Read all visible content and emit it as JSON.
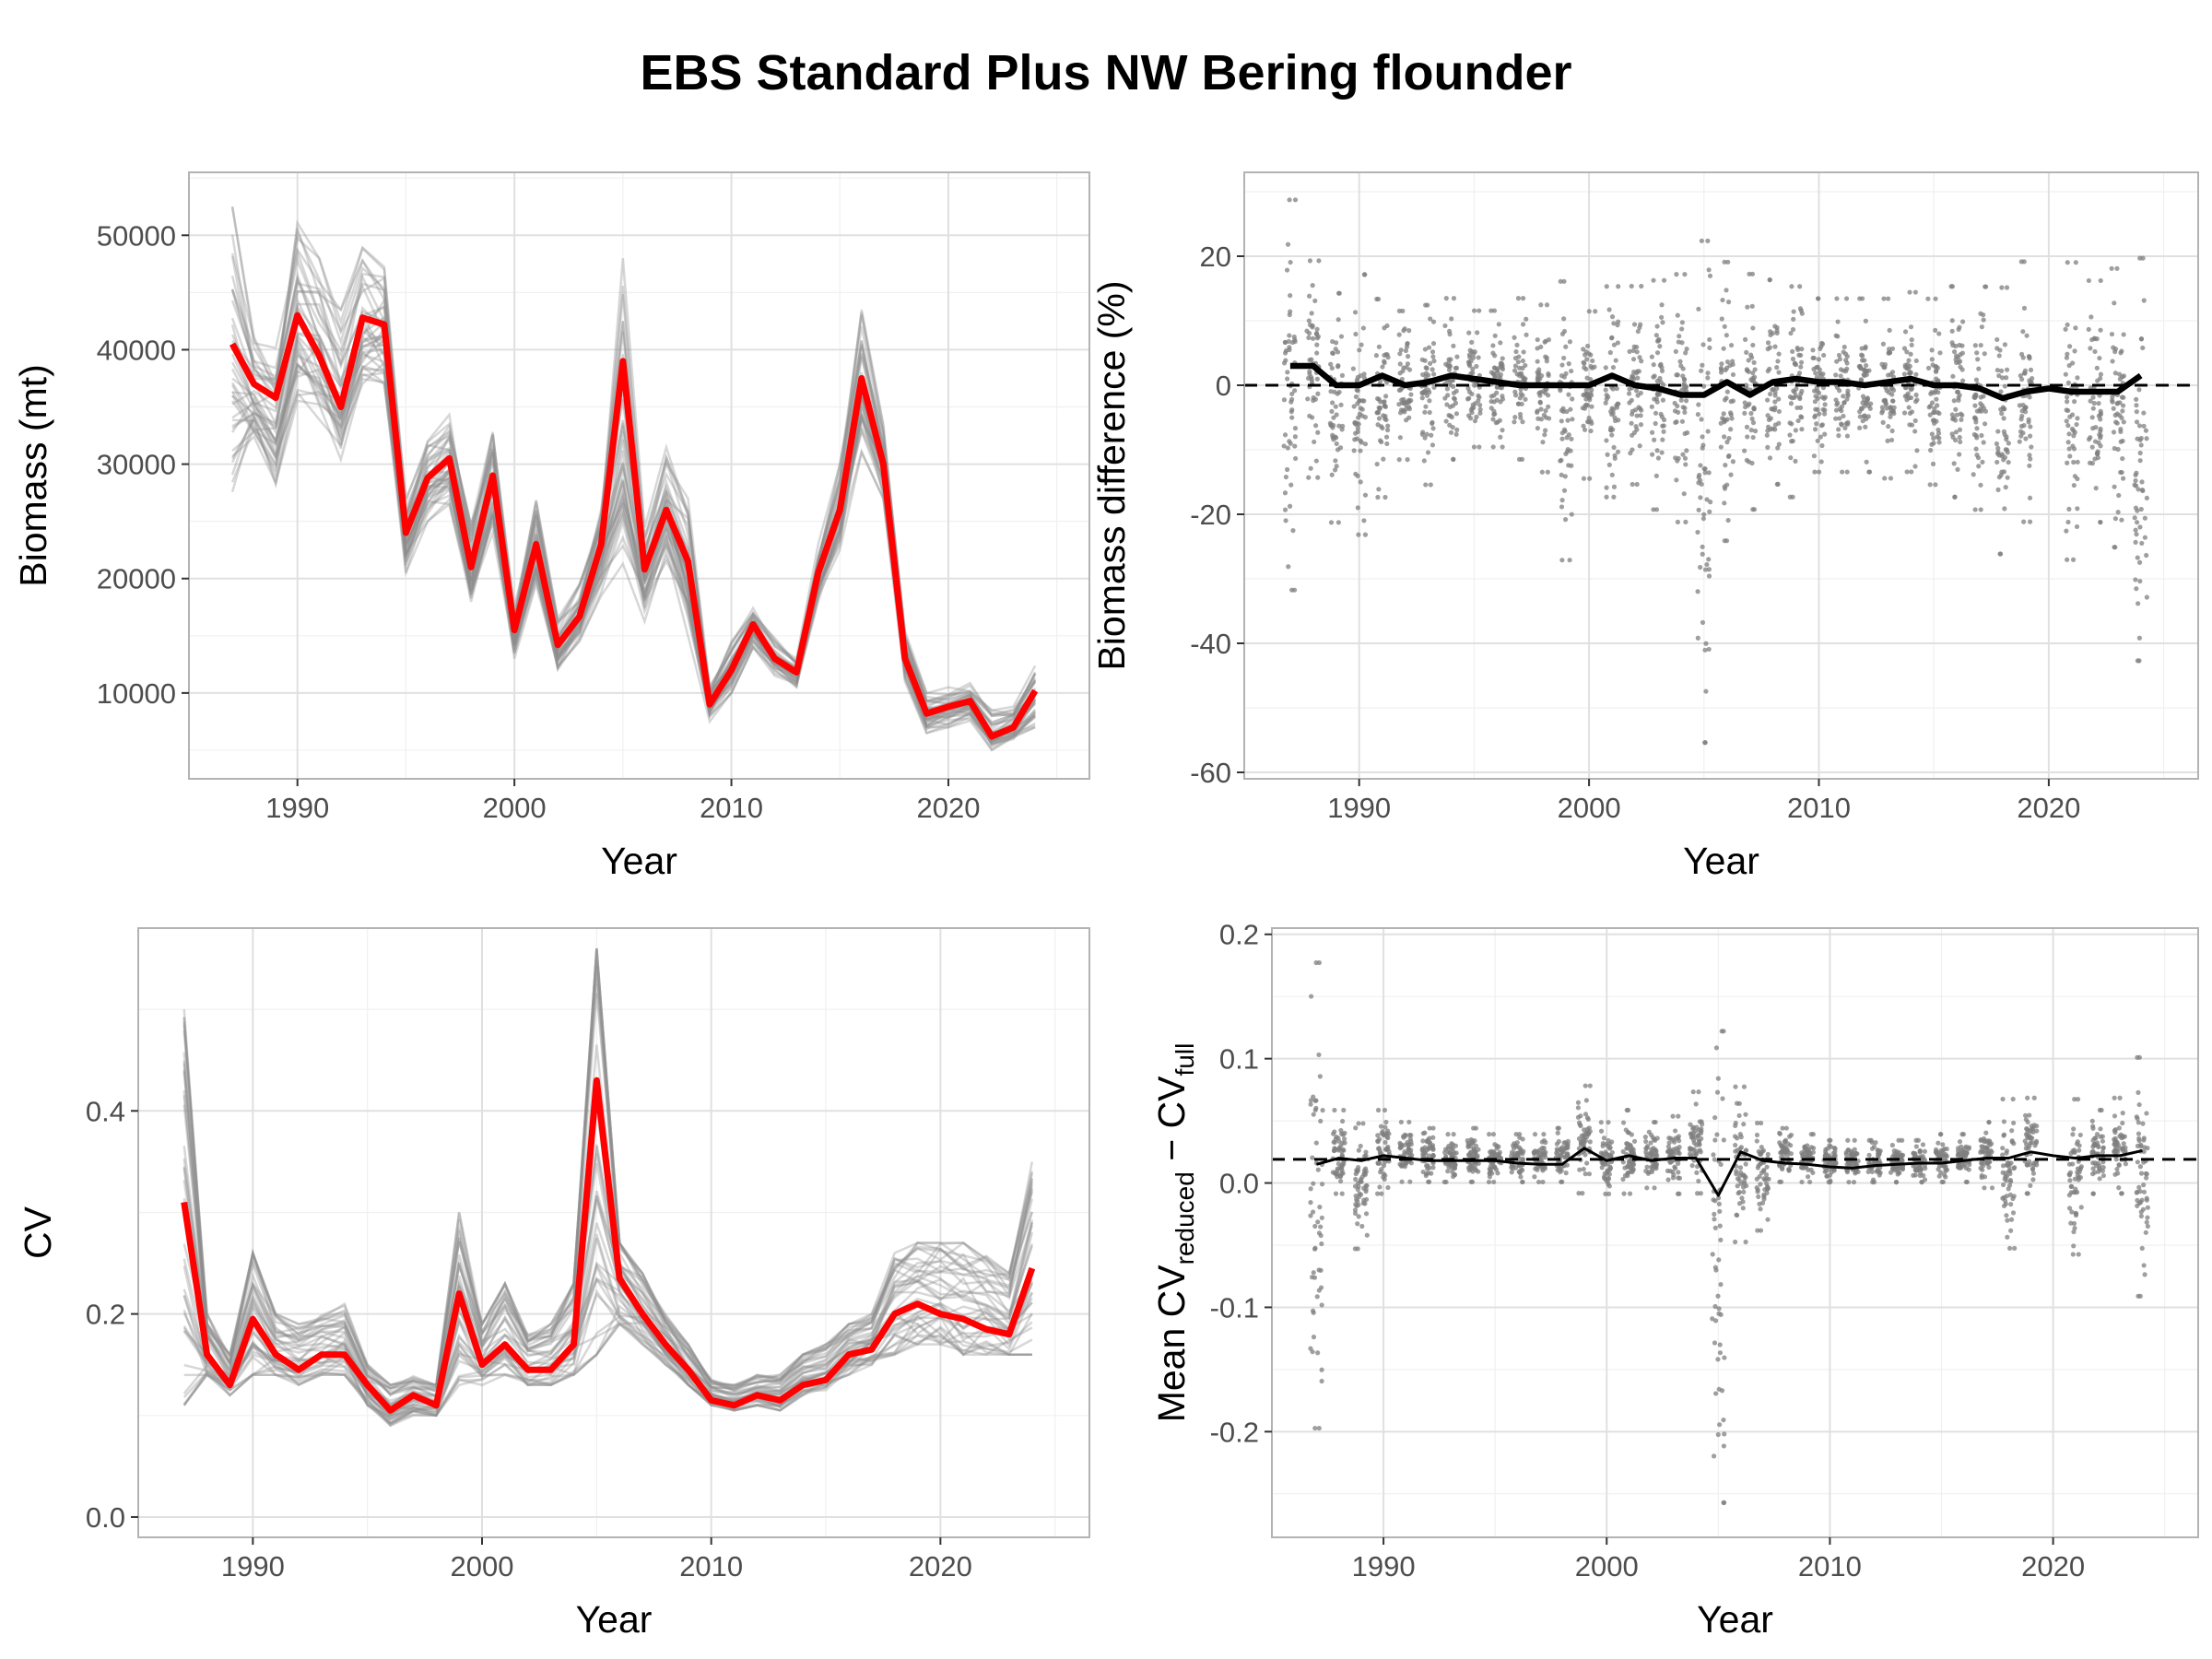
{
  "title": "EBS Standard Plus NW Bering flounder",
  "chart_data": [
    {
      "id": "biomass",
      "type": "line",
      "xlabel": "Year",
      "ylabel": "Biomass (mt)",
      "xlim": [
        1985,
        2026.5
      ],
      "ylim": [
        2500,
        55500
      ],
      "xticks": [
        1990,
        2000,
        2010,
        2020
      ],
      "yticks": [
        10000,
        20000,
        30000,
        40000,
        50000
      ],
      "ytick_labels": [
        "10000",
        "20000",
        "30000",
        "40000",
        "50000"
      ],
      "grid": true,
      "x": [
        1987,
        1988,
        1989,
        1990,
        1991,
        1992,
        1993,
        1994,
        1995,
        1996,
        1997,
        1998,
        1999,
        2000,
        2001,
        2002,
        2003,
        2004,
        2005,
        2006,
        2007,
        2008,
        2009,
        2010,
        2011,
        2012,
        2013,
        2014,
        2015,
        2016,
        2017,
        2018,
        2019,
        2020,
        2021,
        2022,
        2023,
        2024
      ],
      "series": [
        {
          "role": "full_survey",
          "color": "#ff0000",
          "values": [
            40500,
            37000,
            35800,
            43000,
            39500,
            35000,
            42800,
            42200,
            24000,
            28800,
            30500,
            21000,
            29000,
            15500,
            23000,
            14200,
            16700,
            23000,
            39000,
            20800,
            26000,
            21500,
            9000,
            12000,
            16000,
            13000,
            11800,
            20500,
            26000,
            37500,
            30000,
            13000,
            8200,
            8800,
            9300,
            6200,
            7000,
            10200
          ]
        },
        {
          "role": "reduced_envelope_upper",
          "color": "#808080",
          "values": [
            52500,
            42000,
            40500,
            52000,
            48000,
            43500,
            49000,
            48000,
            27000,
            32500,
            34500,
            25000,
            34000,
            17500,
            27500,
            16500,
            19500,
            27000,
            48000,
            24500,
            31500,
            27000,
            11000,
            14500,
            17800,
            14800,
            13000,
            23000,
            30000,
            43500,
            33500,
            15500,
            10000,
            10500,
            11000,
            8500,
            9000,
            12500
          ]
        },
        {
          "role": "reduced_envelope_lower",
          "color": "#808080",
          "values": [
            27000,
            31000,
            27500,
            35000,
            33500,
            29000,
            35500,
            36000,
            20500,
            25000,
            26500,
            17500,
            24000,
            13000,
            19500,
            11500,
            14500,
            18500,
            19500,
            16000,
            21500,
            15000,
            7500,
            10000,
            14000,
            11500,
            10500,
            18000,
            22500,
            31000,
            27000,
            11000,
            6500,
            7000,
            7500,
            5000,
            5500,
            7000
          ]
        }
      ]
    },
    {
      "id": "biomass-difference",
      "type": "scatter",
      "xlabel": "Year",
      "ylabel": "Biomass difference (%)",
      "xlim": [
        1985,
        2026.5
      ],
      "ylim": [
        -61,
        33
      ],
      "xticks": [
        1990,
        2000,
        2010,
        2020
      ],
      "yticks": [
        -60,
        -40,
        -20,
        0,
        20
      ],
      "ytick_labels": [
        "-60",
        "-40",
        "-20",
        "0",
        "20"
      ],
      "grid": true,
      "reference_line": {
        "y": 0,
        "style": "dashed"
      },
      "x": [
        1987,
        1988,
        1989,
        1990,
        1991,
        1992,
        1993,
        1994,
        1995,
        1996,
        1997,
        1998,
        1999,
        2000,
        2001,
        2002,
        2003,
        2004,
        2005,
        2006,
        2007,
        2008,
        2009,
        2010,
        2011,
        2012,
        2013,
        2014,
        2015,
        2016,
        2017,
        2018,
        2019,
        2020,
        2021,
        2022,
        2023,
        2024
      ],
      "mean_line": [
        3,
        3,
        0,
        0,
        1.5,
        0,
        0.5,
        1.5,
        1,
        0.5,
        0,
        0,
        0,
        0,
        1.5,
        0,
        -0.5,
        -1.5,
        -1.5,
        0.5,
        -1.5,
        0.5,
        1,
        0.5,
        0.5,
        0,
        0.5,
        1,
        0,
        0,
        -0.5,
        -2,
        -1,
        -0.5,
        -1,
        -1,
        -1,
        1.5
      ],
      "point_spread": [
        {
          "year": 1987,
          "min": -33,
          "max": 30
        },
        {
          "year": 1988,
          "min": -15,
          "max": 20
        },
        {
          "year": 1989,
          "min": -22,
          "max": 15
        },
        {
          "year": 1990,
          "min": -24,
          "max": 18
        },
        {
          "year": 1991,
          "min": -18,
          "max": 14
        },
        {
          "year": 1992,
          "min": -12,
          "max": 12
        },
        {
          "year": 1993,
          "min": -16,
          "max": 13
        },
        {
          "year": 1994,
          "min": -12,
          "max": 14
        },
        {
          "year": 1995,
          "min": -10,
          "max": 12
        },
        {
          "year": 1996,
          "min": -10,
          "max": 12
        },
        {
          "year": 1997,
          "min": -12,
          "max": 14
        },
        {
          "year": 1998,
          "min": -14,
          "max": 13
        },
        {
          "year": 1999,
          "min": -28,
          "max": 17
        },
        {
          "year": 2000,
          "min": -15,
          "max": 12
        },
        {
          "year": 2001,
          "min": -18,
          "max": 16
        },
        {
          "year": 2002,
          "min": -16,
          "max": 16
        },
        {
          "year": 2003,
          "min": -20,
          "max": 17
        },
        {
          "year": 2004,
          "min": -22,
          "max": 18
        },
        {
          "year": 2005,
          "min": -57,
          "max": 24
        },
        {
          "year": 2006,
          "min": -25,
          "max": 20
        },
        {
          "year": 2007,
          "min": -20,
          "max": 18
        },
        {
          "year": 2008,
          "min": -16,
          "max": 17
        },
        {
          "year": 2009,
          "min": -18,
          "max": 16
        },
        {
          "year": 2010,
          "min": -14,
          "max": 14
        },
        {
          "year": 2011,
          "min": -14,
          "max": 14
        },
        {
          "year": 2012,
          "min": -14,
          "max": 14
        },
        {
          "year": 2013,
          "min": -15,
          "max": 14
        },
        {
          "year": 2014,
          "min": -14,
          "max": 15
        },
        {
          "year": 2015,
          "min": -16,
          "max": 14
        },
        {
          "year": 2016,
          "min": -18,
          "max": 16
        },
        {
          "year": 2017,
          "min": -20,
          "max": 16
        },
        {
          "year": 2018,
          "min": -27,
          "max": 16
        },
        {
          "year": 2019,
          "min": -22,
          "max": 20
        },
        {
          "year": 2021,
          "min": -28,
          "max": 20
        },
        {
          "year": 2022,
          "min": -22,
          "max": 17
        },
        {
          "year": 2023,
          "min": -26,
          "max": 19
        },
        {
          "year": 2024,
          "min": -44,
          "max": 21
        }
      ]
    },
    {
      "id": "cv",
      "type": "line",
      "xlabel": "Year",
      "ylabel": "CV",
      "xlim": [
        1985,
        2026.5
      ],
      "ylim": [
        -0.02,
        0.58
      ],
      "xticks": [
        1990,
        2000,
        2010,
        2020
      ],
      "yticks": [
        0.0,
        0.2,
        0.4
      ],
      "ytick_labels": [
        "0.0",
        "0.2",
        "0.4"
      ],
      "grid": true,
      "x": [
        1987,
        1988,
        1989,
        1990,
        1991,
        1992,
        1993,
        1994,
        1995,
        1996,
        1997,
        1998,
        1999,
        2000,
        2001,
        2002,
        2003,
        2004,
        2005,
        2006,
        2007,
        2008,
        2009,
        2010,
        2011,
        2012,
        2013,
        2014,
        2015,
        2016,
        2017,
        2018,
        2019,
        2020,
        2021,
        2022,
        2023,
        2024
      ],
      "series": [
        {
          "role": "full_survey",
          "color": "#ff0000",
          "values": [
            0.31,
            0.16,
            0.13,
            0.195,
            0.16,
            0.145,
            0.16,
            0.16,
            0.13,
            0.105,
            0.12,
            0.11,
            0.22,
            0.15,
            0.17,
            0.145,
            0.145,
            0.17,
            0.43,
            0.235,
            0.2,
            0.17,
            0.145,
            0.115,
            0.11,
            0.12,
            0.115,
            0.13,
            0.135,
            0.16,
            0.165,
            0.2,
            0.21,
            0.2,
            0.195,
            0.185,
            0.18,
            0.245
          ]
        },
        {
          "role": "reduced_envelope_upper",
          "color": "#808080",
          "values": [
            0.5,
            0.2,
            0.16,
            0.26,
            0.2,
            0.19,
            0.2,
            0.21,
            0.15,
            0.13,
            0.14,
            0.13,
            0.3,
            0.19,
            0.23,
            0.18,
            0.19,
            0.23,
            0.56,
            0.27,
            0.24,
            0.2,
            0.17,
            0.135,
            0.13,
            0.14,
            0.14,
            0.16,
            0.17,
            0.19,
            0.2,
            0.26,
            0.27,
            0.27,
            0.27,
            0.26,
            0.24,
            0.35
          ]
        },
        {
          "role": "reduced_envelope_lower",
          "color": "#808080",
          "values": [
            0.11,
            0.14,
            0.12,
            0.14,
            0.14,
            0.13,
            0.14,
            0.14,
            0.11,
            0.09,
            0.1,
            0.1,
            0.13,
            0.13,
            0.14,
            0.13,
            0.13,
            0.14,
            0.16,
            0.19,
            0.17,
            0.15,
            0.13,
            0.11,
            0.105,
            0.11,
            0.105,
            0.12,
            0.125,
            0.14,
            0.15,
            0.16,
            0.17,
            0.17,
            0.16,
            0.16,
            0.16,
            0.16
          ]
        }
      ]
    },
    {
      "id": "cv-difference",
      "type": "scatter",
      "xlabel": "Year",
      "ylabel": {
        "main": "Mean CV",
        "sub1": "reduced",
        "mid": " − CV",
        "sub2": "full"
      },
      "xlim": [
        1985,
        2026.5
      ],
      "ylim": [
        -0.285,
        0.205
      ],
      "xticks": [
        1990,
        2000,
        2010,
        2020
      ],
      "yticks": [
        -0.2,
        -0.1,
        0.0,
        0.1,
        0.2
      ],
      "ytick_labels": [
        "-0.2",
        "-0.1",
        "0.0",
        "0.1",
        "0.2"
      ],
      "grid": true,
      "reference_line": {
        "y": 0.019,
        "style": "dashed"
      },
      "x": [
        1987,
        1988,
        1989,
        1990,
        1991,
        1992,
        1993,
        1994,
        1995,
        1996,
        1997,
        1998,
        1999,
        2000,
        2001,
        2002,
        2003,
        2004,
        2005,
        2006,
        2007,
        2008,
        2009,
        2010,
        2011,
        2012,
        2013,
        2014,
        2015,
        2016,
        2017,
        2018,
        2019,
        2020,
        2021,
        2022,
        2023,
        2024
      ],
      "mean_line": [
        0.015,
        0.02,
        0.018,
        0.022,
        0.02,
        0.018,
        0.018,
        0.018,
        0.018,
        0.016,
        0.015,
        0.015,
        0.028,
        0.018,
        0.022,
        0.018,
        0.02,
        0.02,
        -0.01,
        0.025,
        0.018,
        0.016,
        0.015,
        0.013,
        0.012,
        0.014,
        0.015,
        0.016,
        0.016,
        0.018,
        0.02,
        0.02,
        0.025,
        0.022,
        0.02,
        0.022,
        0.022,
        0.026
      ],
      "point_spread": [
        {
          "year": 1987,
          "min": -0.205,
          "max": 0.185
        },
        {
          "year": 1988,
          "min": -0.01,
          "max": 0.06
        },
        {
          "year": 1989,
          "min": -0.055,
          "max": 0.05
        },
        {
          "year": 1990,
          "min": -0.01,
          "max": 0.06
        },
        {
          "year": 1991,
          "min": 0.0,
          "max": 0.05
        },
        {
          "year": 1992,
          "min": 0.0,
          "max": 0.045
        },
        {
          "year": 1993,
          "min": 0.0,
          "max": 0.04
        },
        {
          "year": 1994,
          "min": 0.0,
          "max": 0.045
        },
        {
          "year": 1995,
          "min": 0.0,
          "max": 0.04
        },
        {
          "year": 1996,
          "min": 0.0,
          "max": 0.04
        },
        {
          "year": 1997,
          "min": 0.0,
          "max": 0.04
        },
        {
          "year": 1998,
          "min": 0.0,
          "max": 0.045
        },
        {
          "year": 1999,
          "min": -0.01,
          "max": 0.08
        },
        {
          "year": 2000,
          "min": -0.01,
          "max": 0.05
        },
        {
          "year": 2001,
          "min": -0.01,
          "max": 0.06
        },
        {
          "year": 2002,
          "min": -0.005,
          "max": 0.05
        },
        {
          "year": 2003,
          "min": -0.01,
          "max": 0.055
        },
        {
          "year": 2004,
          "min": -0.01,
          "max": 0.075
        },
        {
          "year": 2005,
          "min": -0.265,
          "max": 0.13
        },
        {
          "year": 2006,
          "min": -0.05,
          "max": 0.08
        },
        {
          "year": 2007,
          "min": -0.04,
          "max": 0.05
        },
        {
          "year": 2008,
          "min": 0.0,
          "max": 0.045
        },
        {
          "year": 2009,
          "min": 0.0,
          "max": 0.04
        },
        {
          "year": 2010,
          "min": 0.0,
          "max": 0.035
        },
        {
          "year": 2011,
          "min": 0.0,
          "max": 0.035
        },
        {
          "year": 2012,
          "min": 0.0,
          "max": 0.035
        },
        {
          "year": 2013,
          "min": 0.0,
          "max": 0.035
        },
        {
          "year": 2014,
          "min": 0.0,
          "max": 0.035
        },
        {
          "year": 2015,
          "min": 0.0,
          "max": 0.04
        },
        {
          "year": 2016,
          "min": 0.0,
          "max": 0.04
        },
        {
          "year": 2017,
          "min": -0.005,
          "max": 0.05
        },
        {
          "year": 2018,
          "min": -0.055,
          "max": 0.07
        },
        {
          "year": 2019,
          "min": -0.01,
          "max": 0.07
        },
        {
          "year": 2021,
          "min": -0.06,
          "max": 0.07
        },
        {
          "year": 2022,
          "min": -0.01,
          "max": 0.06
        },
        {
          "year": 2023,
          "min": -0.01,
          "max": 0.07
        },
        {
          "year": 2024,
          "min": -0.095,
          "max": 0.105
        }
      ]
    }
  ]
}
